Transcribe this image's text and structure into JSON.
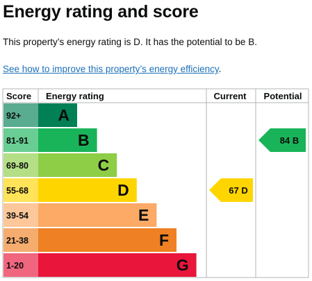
{
  "page": {
    "title": "Energy rating and score",
    "summary": "This property’s energy rating is D. It has the potential to be B.",
    "link_text": "See how to improve this property’s energy efficiency",
    "link_suffix": "."
  },
  "chart_data": {
    "type": "bar",
    "headers": {
      "score": "Score",
      "rating": "Energy rating",
      "current": "Current",
      "potential": "Potential"
    },
    "bands": [
      {
        "letter": "A",
        "range": "92+",
        "color": "#008054"
      },
      {
        "letter": "B",
        "range": "81-91",
        "color": "#19b459"
      },
      {
        "letter": "C",
        "range": "69-80",
        "color": "#8dce46"
      },
      {
        "letter": "D",
        "range": "55-68",
        "color": "#ffd500"
      },
      {
        "letter": "E",
        "range": "39-54",
        "color": "#fcaa65"
      },
      {
        "letter": "F",
        "range": "21-38",
        "color": "#ef8023"
      },
      {
        "letter": "G",
        "range": "1-20",
        "color": "#e9153b"
      }
    ],
    "current": {
      "value": 67,
      "band": "D",
      "label": "67  D",
      "color": "#ffd500"
    },
    "potential": {
      "value": 84,
      "band": "B",
      "label": "84  B",
      "color": "#19b459"
    }
  }
}
